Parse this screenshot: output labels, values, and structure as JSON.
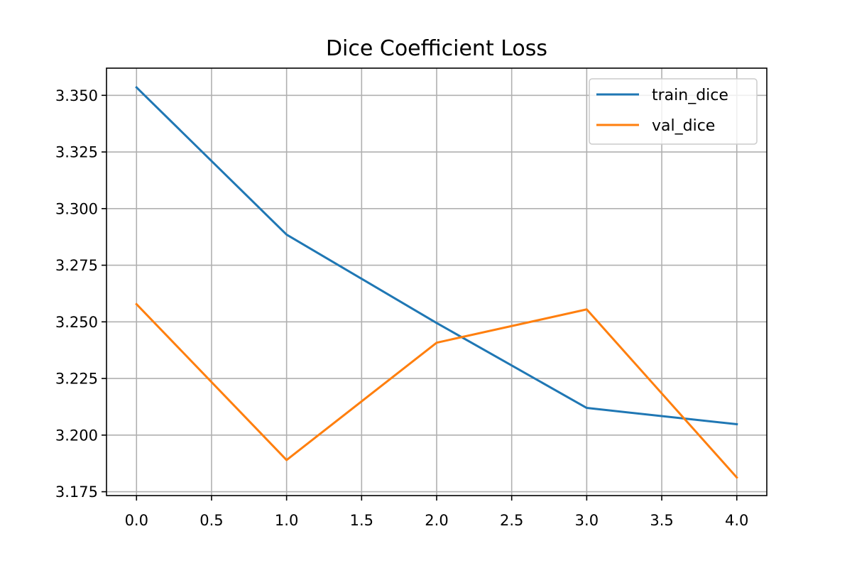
{
  "chart_data": {
    "type": "line",
    "title": "Dice Coefficient Loss",
    "xlabel": "",
    "ylabel": "",
    "x": [
      0,
      1,
      2,
      3,
      4
    ],
    "series": [
      {
        "name": "train_dice",
        "values": [
          3.3535,
          3.2885,
          3.2495,
          3.212,
          3.2048
        ],
        "color": "#1f77b4"
      },
      {
        "name": "val_dice",
        "values": [
          3.2578,
          3.189,
          3.2408,
          3.2555,
          3.1813
        ],
        "color": "#ff7f0e"
      }
    ],
    "xlim": [
      -0.2,
      4.2
    ],
    "ylim": [
      3.1733,
      3.362
    ],
    "xticks": [
      0.0,
      0.5,
      1.0,
      1.5,
      2.0,
      2.5,
      3.0,
      3.5,
      4.0
    ],
    "xtick_labels": [
      "0.0",
      "0.5",
      "1.0",
      "1.5",
      "2.0",
      "2.5",
      "3.0",
      "3.5",
      "4.0"
    ],
    "yticks": [
      3.175,
      3.2,
      3.225,
      3.25,
      3.275,
      3.3,
      3.325,
      3.35
    ],
    "ytick_labels": [
      "3.175",
      "3.200",
      "3.225",
      "3.250",
      "3.275",
      "3.300",
      "3.325",
      "3.350"
    ],
    "grid": true,
    "legend_position": "upper right"
  }
}
